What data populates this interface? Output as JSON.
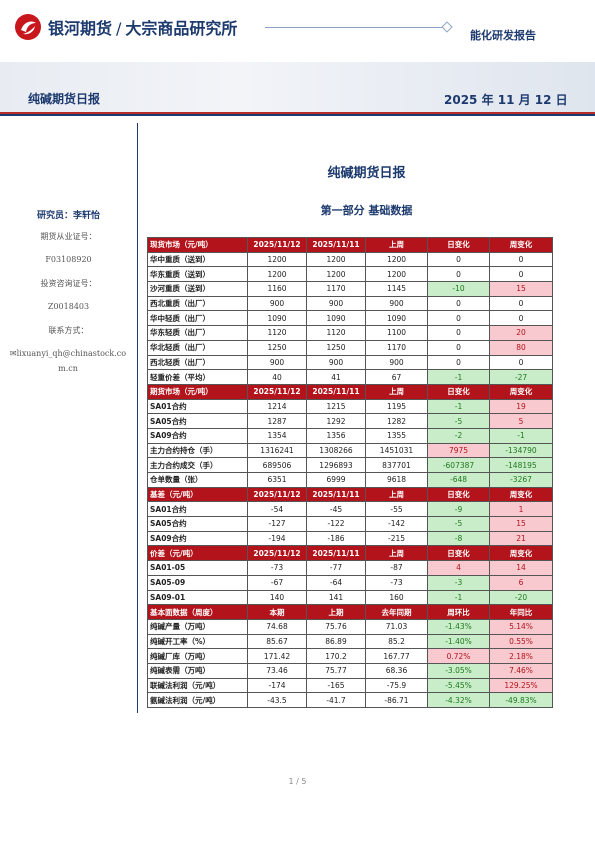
{
  "header": {
    "company": "银河期货",
    "division": "大宗商品研究所",
    "report_type": "能化研发报告"
  },
  "banner": {
    "title": "纯碱期货日报",
    "date": "2025 年 11 月 12 日"
  },
  "sidebar": {
    "researcher": "研究员：李轩怡",
    "license_label": "期货从业证号：",
    "license_no": "F03108920",
    "consult_label": "投资咨询证号：",
    "consult_no": "Z0018403",
    "contact_label": "联系方式：",
    "email": "lixuanyi_qh@chinastock.com.cn"
  },
  "main": {
    "title": "纯碱期货日报",
    "part": "第一部分   基础数据"
  },
  "colors": {
    "header_red": "#b3131b",
    "up_bg": "#f8c9ce",
    "down_bg": "#c9ecc9"
  },
  "table": [
    {
      "type": "hdr",
      "cells": [
        "现货市场（元/吨）",
        "2025/11/12",
        "2025/11/11",
        "上周",
        "日变化",
        "周变化"
      ]
    },
    {
      "type": "row",
      "cells": [
        "华中重质（送到）",
        "1200",
        "1200",
        "1200",
        "0",
        "0"
      ],
      "cls": [
        "",
        "",
        "",
        "",
        "",
        ""
      ]
    },
    {
      "type": "row",
      "cells": [
        "华东重质（送到）",
        "1200",
        "1200",
        "1200",
        "0",
        "0"
      ],
      "cls": [
        "",
        "",
        "",
        "",
        "",
        ""
      ]
    },
    {
      "type": "row",
      "cells": [
        "沙河重质（送到）",
        "1160",
        "1170",
        "1145",
        "-10",
        "15"
      ],
      "cls": [
        "",
        "",
        "",
        "",
        "neg",
        "pos"
      ]
    },
    {
      "type": "row",
      "cells": [
        "西北重质（出厂）",
        "900",
        "900",
        "900",
        "0",
        "0"
      ],
      "cls": [
        "",
        "",
        "",
        "",
        "",
        ""
      ]
    },
    {
      "type": "row",
      "cells": [
        "华中轻质（出厂）",
        "1090",
        "1090",
        "1090",
        "0",
        "0"
      ],
      "cls": [
        "",
        "",
        "",
        "",
        "",
        ""
      ]
    },
    {
      "type": "row",
      "cells": [
        "华东轻质（出厂）",
        "1120",
        "1120",
        "1100",
        "0",
        "20"
      ],
      "cls": [
        "",
        "",
        "",
        "",
        "",
        "pos"
      ]
    },
    {
      "type": "row",
      "cells": [
        "华北轻质（出厂）",
        "1250",
        "1250",
        "1170",
        "0",
        "80"
      ],
      "cls": [
        "",
        "",
        "",
        "",
        "",
        "pos"
      ]
    },
    {
      "type": "row",
      "cells": [
        "西北轻质（出厂）",
        "900",
        "900",
        "900",
        "0",
        "0"
      ],
      "cls": [
        "",
        "",
        "",
        "",
        "",
        ""
      ]
    },
    {
      "type": "row",
      "cells": [
        "轻重价差（平均）",
        "40",
        "41",
        "67",
        "-1",
        "-27"
      ],
      "cls": [
        "",
        "",
        "",
        "",
        "neg",
        "neg"
      ]
    },
    {
      "type": "hdr",
      "cells": [
        "期货市场（元/吨）",
        "2025/11/12",
        "2025/11/11",
        "上周",
        "日变化",
        "周变化"
      ]
    },
    {
      "type": "row",
      "cells": [
        "SA01合约",
        "1214",
        "1215",
        "1195",
        "-1",
        "19"
      ],
      "cls": [
        "",
        "",
        "",
        "",
        "neg",
        "pos"
      ]
    },
    {
      "type": "row",
      "cells": [
        "SA05合约",
        "1287",
        "1292",
        "1282",
        "-5",
        "5"
      ],
      "cls": [
        "",
        "",
        "",
        "",
        "neg",
        "pos"
      ]
    },
    {
      "type": "row",
      "cells": [
        "SA09合约",
        "1354",
        "1356",
        "1355",
        "-2",
        "-1"
      ],
      "cls": [
        "",
        "",
        "",
        "",
        "neg",
        "neg"
      ]
    },
    {
      "type": "row",
      "cells": [
        "主力合约持仓（手）",
        "1316241",
        "1308266",
        "1451031",
        "7975",
        "-134790"
      ],
      "cls": [
        "",
        "",
        "",
        "",
        "pos",
        "neg"
      ]
    },
    {
      "type": "row",
      "cells": [
        "主力合约成交（手）",
        "689506",
        "1296893",
        "837701",
        "-607387",
        "-148195"
      ],
      "cls": [
        "",
        "",
        "",
        "",
        "neg",
        "neg"
      ]
    },
    {
      "type": "row",
      "cells": [
        "仓单数量（张）",
        "6351",
        "6999",
        "9618",
        "-648",
        "-3267"
      ],
      "cls": [
        "",
        "",
        "",
        "",
        "neg",
        "neg"
      ]
    },
    {
      "type": "hdr",
      "cells": [
        "基差（元/吨）",
        "2025/11/12",
        "2025/11/11",
        "上周",
        "日变化",
        "周变化"
      ]
    },
    {
      "type": "row",
      "cells": [
        "SA01合约",
        "-54",
        "-45",
        "-55",
        "-9",
        "1"
      ],
      "cls": [
        "",
        "",
        "",
        "",
        "neg",
        "pos"
      ]
    },
    {
      "type": "row",
      "cells": [
        "SA05合约",
        "-127",
        "-122",
        "-142",
        "-5",
        "15"
      ],
      "cls": [
        "",
        "",
        "",
        "",
        "neg",
        "pos"
      ]
    },
    {
      "type": "row",
      "cells": [
        "SA09合约",
        "-194",
        "-186",
        "-215",
        "-8",
        "21"
      ],
      "cls": [
        "",
        "",
        "",
        "",
        "neg",
        "pos"
      ]
    },
    {
      "type": "hdr",
      "cells": [
        "价差（元/吨）",
        "2025/11/12",
        "2025/11/11",
        "上周",
        "日变化",
        "周变化"
      ]
    },
    {
      "type": "row",
      "cells": [
        "SA01-05",
        "-73",
        "-77",
        "-87",
        "4",
        "14"
      ],
      "cls": [
        "",
        "",
        "",
        "",
        "pos",
        "pos"
      ]
    },
    {
      "type": "row",
      "cells": [
        "SA05-09",
        "-67",
        "-64",
        "-73",
        "-3",
        "6"
      ],
      "cls": [
        "",
        "",
        "",
        "",
        "neg",
        "pos"
      ]
    },
    {
      "type": "row",
      "cells": [
        "SA09-01",
        "140",
        "141",
        "160",
        "-1",
        "-20"
      ],
      "cls": [
        "",
        "",
        "",
        "",
        "neg",
        "neg"
      ]
    },
    {
      "type": "hdr",
      "cells": [
        "基本面数据（周度）",
        "本期",
        "上期",
        "去年同期",
        "周环比",
        "年同比"
      ]
    },
    {
      "type": "row",
      "cells": [
        "纯碱产量（万吨）",
        "74.68",
        "75.76",
        "71.03",
        "-1.43%",
        "5.14%"
      ],
      "cls": [
        "",
        "",
        "",
        "",
        "neg",
        "pos"
      ]
    },
    {
      "type": "row",
      "cells": [
        "纯碱开工率（%）",
        "85.67",
        "86.89",
        "85.2",
        "-1.40%",
        "0.55%"
      ],
      "cls": [
        "",
        "",
        "",
        "",
        "neg",
        "pos"
      ]
    },
    {
      "type": "row",
      "cells": [
        "纯碱厂库（万吨）",
        "171.42",
        "170.2",
        "167.77",
        "0.72%",
        "2.18%"
      ],
      "cls": [
        "",
        "",
        "",
        "",
        "pos",
        "pos"
      ]
    },
    {
      "type": "row",
      "cells": [
        "纯碱表需（万吨）",
        "73.46",
        "75.77",
        "68.36",
        "-3.05%",
        "7.46%"
      ],
      "cls": [
        "",
        "",
        "",
        "",
        "neg",
        "pos"
      ]
    },
    {
      "type": "row",
      "cells": [
        "联碱法利润（元/吨）",
        "-174",
        "-165",
        "-75.9",
        "-5.45%",
        "129.25%"
      ],
      "cls": [
        "",
        "",
        "",
        "",
        "neg",
        "pos"
      ]
    },
    {
      "type": "row",
      "cells": [
        "氨碱法利润（元/吨）",
        "-43.5",
        "-41.7",
        "-86.71",
        "-4.32%",
        "-49.83%"
      ],
      "cls": [
        "",
        "",
        "",
        "",
        "neg",
        "neg"
      ]
    }
  ],
  "footer": {
    "page": "1 / 5"
  }
}
